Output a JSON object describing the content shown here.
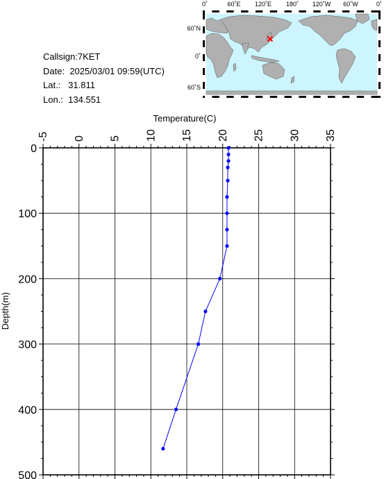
{
  "station": {
    "callsign_label": "Callsign:",
    "callsign": "7KET",
    "date_label": "Date:",
    "date": "2025/03/01 09:59(UTC)",
    "lat_label": "Lat.:",
    "lat": "31.811",
    "lon_label": "Lon.:",
    "lon": "134.551"
  },
  "map": {
    "lon_ticks": [
      "0˚",
      "60˚E",
      "120˚E",
      "180˚",
      "120˚W",
      "60˚W",
      "0˚"
    ],
    "lat_ticks": [
      "60˚N",
      "0˚",
      "60˚S"
    ],
    "ocean_color": "#ccf5ff",
    "land_color": "#b0b0b0",
    "marker_color": "#ff0000",
    "marker": {
      "lon": 134.551,
      "lat": 31.811
    }
  },
  "chart_data": {
    "type": "line",
    "title": "",
    "xlabel": "Temperature(C)",
    "ylabel": "Depth(m)",
    "xlim": [
      -5,
      35
    ],
    "ylim": [
      500,
      0
    ],
    "x_ticks": [
      -5,
      0,
      5,
      10,
      15,
      20,
      25,
      30,
      35
    ],
    "y_ticks": [
      0,
      100,
      200,
      300,
      400,
      500
    ],
    "grid": true,
    "line_color": "#0000ff",
    "series": [
      {
        "depth": [
          0,
          10,
          20,
          30,
          50,
          75,
          100,
          125,
          150,
          200,
          250,
          300,
          400,
          460
        ],
        "temperature": [
          20.8,
          20.8,
          20.8,
          20.7,
          20.7,
          20.6,
          20.6,
          20.6,
          20.6,
          19.6,
          17.6,
          16.6,
          13.5,
          11.7
        ]
      }
    ]
  }
}
